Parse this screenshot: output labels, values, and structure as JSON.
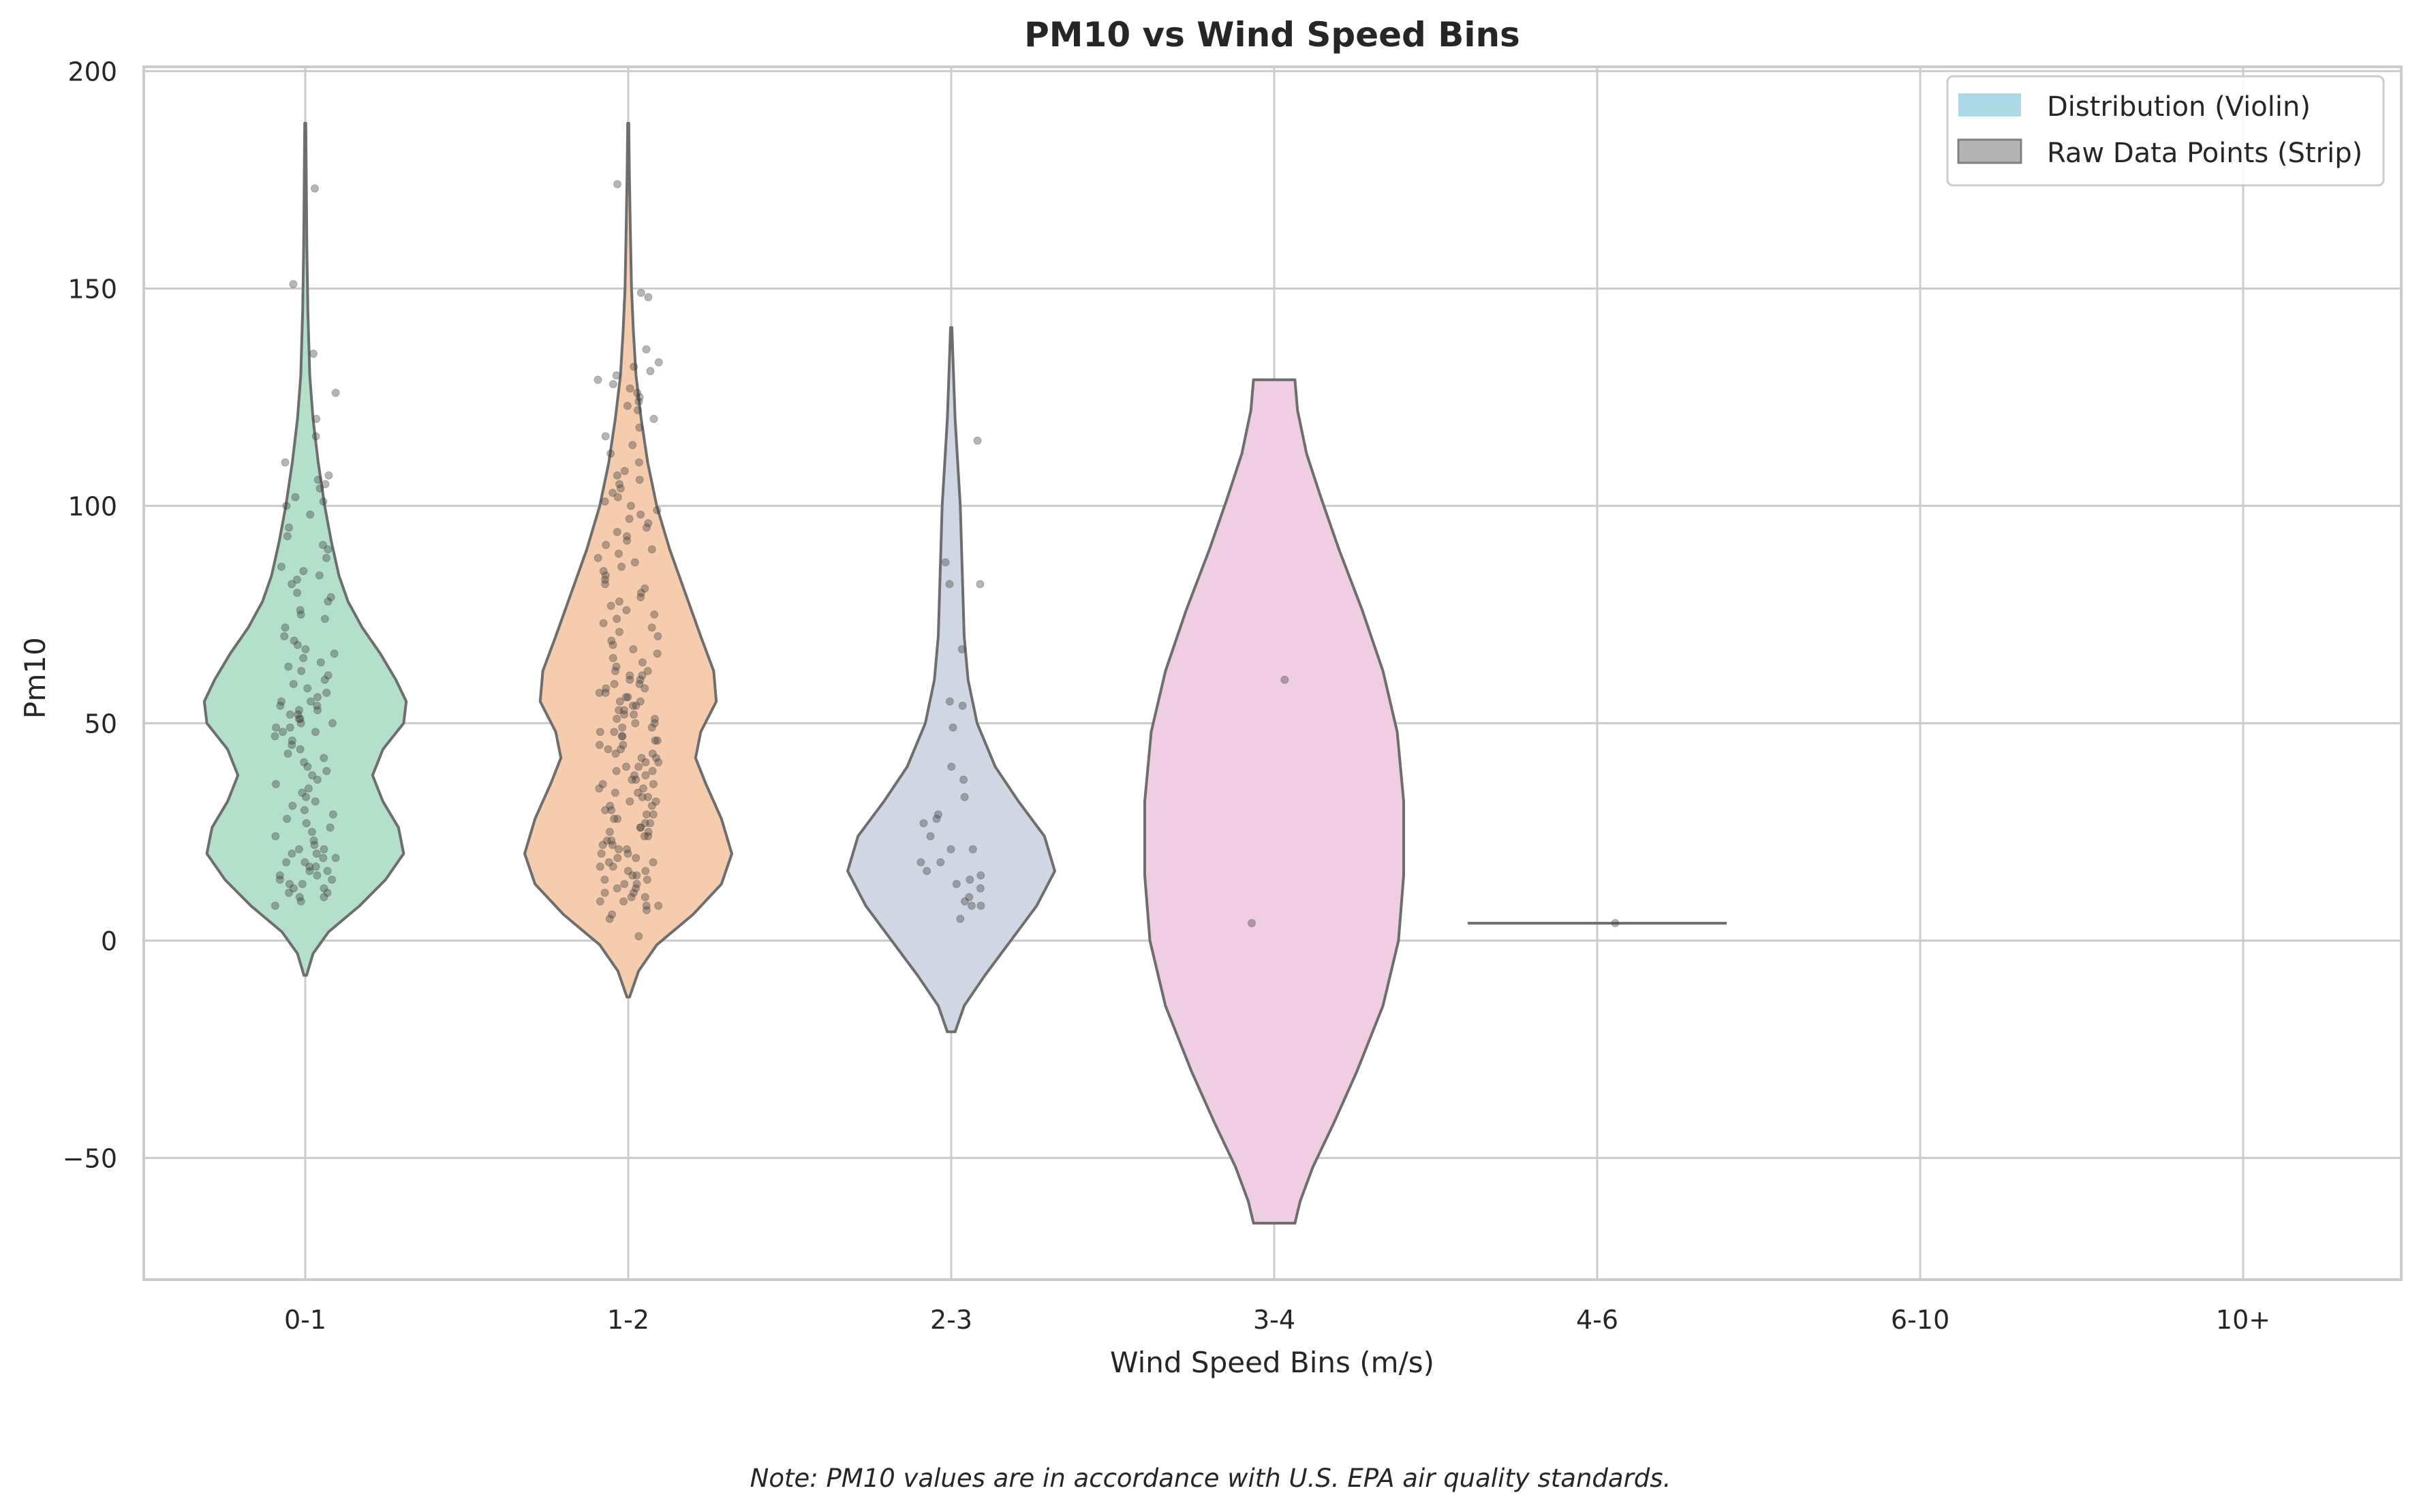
{
  "chart_data": {
    "type": "violin",
    "title": "PM10 vs Wind Speed Bins",
    "xlabel": "Wind Speed Bins (m/s)",
    "ylabel": "Pm10",
    "ylim": [
      -78,
      201
    ],
    "yticks": [
      -50,
      0,
      50,
      100,
      150,
      200
    ],
    "yticklabels": [
      "−50",
      "0",
      "50",
      "100",
      "150",
      "200"
    ],
    "categories": [
      "0-1",
      "1-2",
      "2-3",
      "3-4",
      "4-6",
      "6-10",
      "10+"
    ],
    "grid": true,
    "legend": {
      "placement": "top-right",
      "entries": [
        {
          "label": "Distribution (Violin)",
          "color": "#add8e6"
        },
        {
          "label": "Raw Data Points (Strip)",
          "color": "#b3b3b3"
        }
      ]
    },
    "violins": [
      {
        "category": "0-1",
        "color": "#b3dfcb",
        "min": -8,
        "max": 188,
        "profile": [
          [
            -8,
            0.01
          ],
          [
            -3,
            0.06
          ],
          [
            2,
            0.18
          ],
          [
            8,
            0.42
          ],
          [
            14,
            0.62
          ],
          [
            20,
            0.76
          ],
          [
            26,
            0.72
          ],
          [
            32,
            0.6
          ],
          [
            38,
            0.52
          ],
          [
            44,
            0.6
          ],
          [
            50,
            0.76
          ],
          [
            55,
            0.78
          ],
          [
            60,
            0.7
          ],
          [
            66,
            0.58
          ],
          [
            72,
            0.44
          ],
          [
            78,
            0.33
          ],
          [
            84,
            0.26
          ],
          [
            92,
            0.2
          ],
          [
            100,
            0.15
          ],
          [
            110,
            0.1
          ],
          [
            120,
            0.06
          ],
          [
            130,
            0.035
          ],
          [
            145,
            0.02
          ],
          [
            160,
            0.012
          ],
          [
            175,
            0.008
          ],
          [
            188,
            0.004
          ]
        ]
      },
      {
        "category": "1-2",
        "color": "#f5cdae",
        "min": -13,
        "max": 188,
        "profile": [
          [
            -13,
            0.01
          ],
          [
            -7,
            0.08
          ],
          [
            -1,
            0.22
          ],
          [
            6,
            0.5
          ],
          [
            13,
            0.72
          ],
          [
            20,
            0.8
          ],
          [
            28,
            0.72
          ],
          [
            36,
            0.6
          ],
          [
            42,
            0.52
          ],
          [
            48,
            0.56
          ],
          [
            55,
            0.68
          ],
          [
            62,
            0.66
          ],
          [
            70,
            0.56
          ],
          [
            80,
            0.44
          ],
          [
            90,
            0.32
          ],
          [
            100,
            0.22
          ],
          [
            110,
            0.15
          ],
          [
            120,
            0.1
          ],
          [
            130,
            0.06
          ],
          [
            140,
            0.04
          ],
          [
            150,
            0.025
          ],
          [
            165,
            0.015
          ],
          [
            178,
            0.008
          ],
          [
            188,
            0.004
          ]
        ]
      },
      {
        "category": "2-3",
        "color": "#d0d6e3",
        "min": -21,
        "max": 141,
        "profile": [
          [
            -21,
            0.03
          ],
          [
            -15,
            0.1
          ],
          [
            -8,
            0.26
          ],
          [
            0,
            0.46
          ],
          [
            8,
            0.66
          ],
          [
            16,
            0.8
          ],
          [
            24,
            0.72
          ],
          [
            32,
            0.52
          ],
          [
            40,
            0.34
          ],
          [
            50,
            0.2
          ],
          [
            60,
            0.13
          ],
          [
            70,
            0.1
          ],
          [
            80,
            0.09
          ],
          [
            90,
            0.08
          ],
          [
            100,
            0.07
          ],
          [
            110,
            0.05
          ],
          [
            120,
            0.03
          ],
          [
            130,
            0.018
          ],
          [
            141,
            0.005
          ]
        ]
      },
      {
        "category": "3-4",
        "color": "#efcde2",
        "min": -65,
        "max": 129,
        "profile": [
          [
            -65,
            0.16
          ],
          [
            -60,
            0.2
          ],
          [
            -52,
            0.3
          ],
          [
            -42,
            0.46
          ],
          [
            -30,
            0.64
          ],
          [
            -15,
            0.84
          ],
          [
            0,
            0.96
          ],
          [
            15,
            1.0
          ],
          [
            32,
            1.0
          ],
          [
            48,
            0.95
          ],
          [
            62,
            0.84
          ],
          [
            76,
            0.68
          ],
          [
            90,
            0.5
          ],
          [
            102,
            0.36
          ],
          [
            112,
            0.25
          ],
          [
            122,
            0.18
          ],
          [
            129,
            0.16
          ]
        ]
      },
      {
        "category": "4-6",
        "color": "#ffffff",
        "min": 4,
        "max": 4,
        "flat_value": 4,
        "profile": []
      }
    ],
    "points": [
      {
        "category": "0-1",
        "values": [
          173,
          151,
          135,
          126,
          120,
          116,
          110,
          107,
          106,
          105,
          104,
          102,
          101,
          100,
          98,
          95,
          93,
          91,
          90,
          88,
          86,
          85,
          84,
          83,
          82,
          80,
          79,
          78,
          76,
          75,
          74,
          72,
          70,
          69,
          68,
          67,
          66,
          65,
          64,
          63,
          62,
          61,
          60,
          59,
          58,
          57,
          56,
          55,
          55,
          54,
          54,
          53,
          53,
          52,
          52,
          51,
          51,
          50,
          50,
          49,
          49,
          48,
          48,
          47,
          46,
          45,
          44,
          43,
          42,
          41,
          40,
          39,
          38,
          37,
          36,
          35,
          34,
          33,
          32,
          31,
          30,
          29,
          28,
          27,
          26,
          25,
          24,
          23,
          22,
          21,
          21,
          20,
          20,
          19,
          19,
          18,
          18,
          17,
          17,
          16,
          16,
          15,
          15,
          14,
          14,
          13,
          13,
          12,
          12,
          11,
          11,
          10,
          10,
          9,
          8
        ]
      },
      {
        "category": "1-2",
        "values": [
          174,
          149,
          148,
          136,
          133,
          132,
          131,
          130,
          129,
          128,
          127,
          126,
          125,
          124,
          123,
          122,
          120,
          118,
          116,
          114,
          112,
          110,
          108,
          107,
          106,
          105,
          104,
          103,
          102,
          101,
          100,
          99,
          98,
          97,
          96,
          95,
          94,
          93,
          92,
          91,
          90,
          89,
          88,
          87,
          86,
          85,
          84,
          83,
          82,
          81,
          80,
          79,
          78,
          77,
          76,
          75,
          74,
          73,
          72,
          71,
          70,
          69,
          68,
          67,
          66,
          65,
          64,
          63,
          62,
          62,
          61,
          61,
          60,
          60,
          59,
          59,
          58,
          58,
          57,
          57,
          56,
          56,
          55,
          55,
          54,
          54,
          53,
          53,
          52,
          52,
          51,
          51,
          50,
          50,
          49,
          49,
          48,
          48,
          47,
          47,
          46,
          46,
          45,
          45,
          44,
          44,
          43,
          43,
          42,
          42,
          41,
          41,
          40,
          40,
          39,
          39,
          38,
          38,
          37,
          37,
          36,
          36,
          35,
          35,
          34,
          34,
          33,
          33,
          32,
          32,
          31,
          31,
          30,
          30,
          29,
          29,
          28,
          28,
          27,
          27,
          26,
          26,
          25,
          25,
          24,
          24,
          23,
          23,
          22,
          22,
          21,
          21,
          20,
          20,
          19,
          19,
          18,
          18,
          17,
          17,
          16,
          16,
          15,
          15,
          14,
          14,
          13,
          13,
          12,
          12,
          11,
          11,
          10,
          10,
          9,
          9,
          8,
          8,
          7,
          6,
          5,
          1
        ]
      },
      {
        "category": "2-3",
        "values": [
          115,
          87,
          82,
          82,
          67,
          55,
          54,
          49,
          40,
          37,
          33,
          29,
          28,
          27,
          24,
          21,
          21,
          18,
          18,
          16,
          15,
          14,
          13,
          12,
          10,
          9,
          8,
          8,
          5
        ]
      },
      {
        "category": "3-4",
        "values": [
          60,
          4
        ]
      },
      {
        "category": "4-6",
        "values": [
          4
        ]
      }
    ],
    "note": "Note: PM10 values are in accordance with U.S. EPA air quality standards."
  }
}
